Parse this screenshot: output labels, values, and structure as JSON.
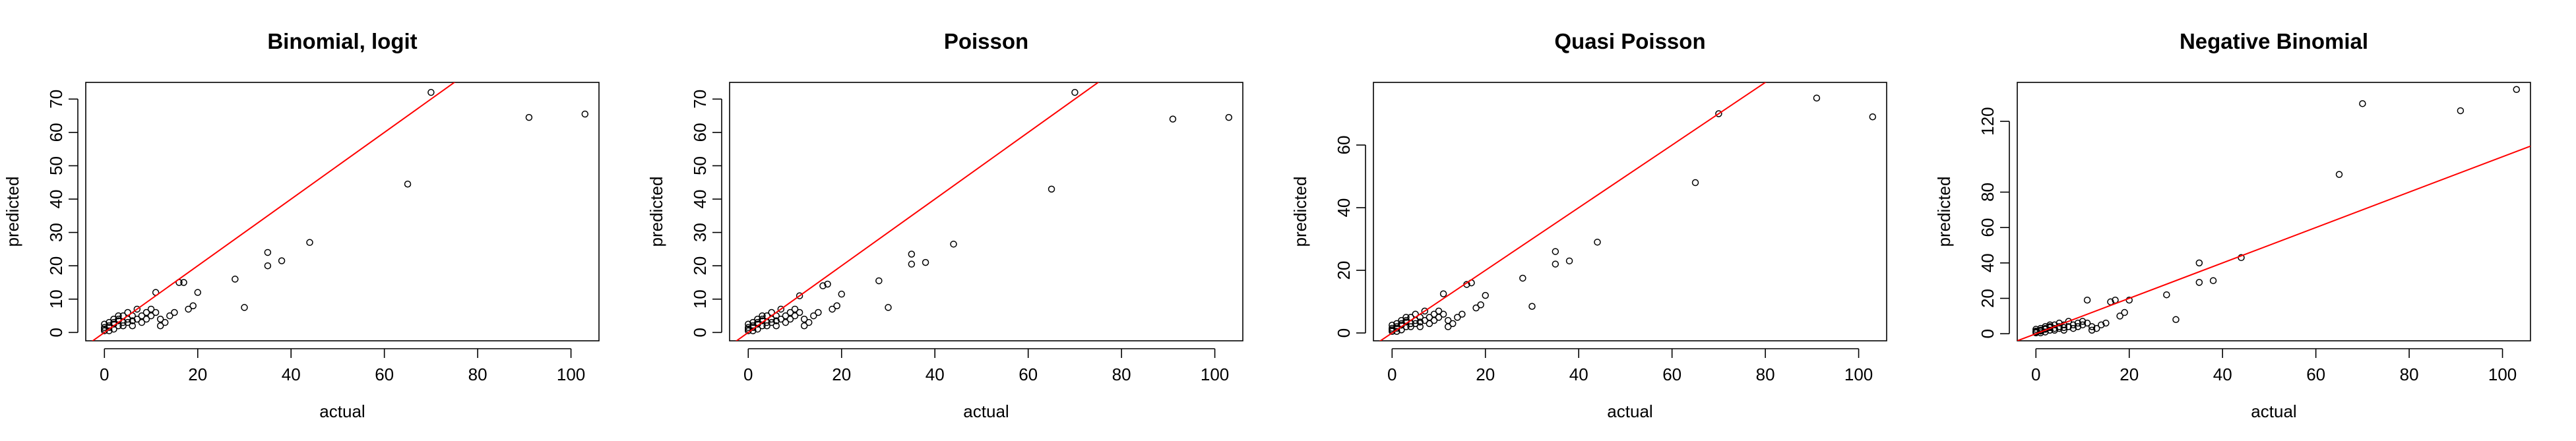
{
  "chart_data": [
    {
      "type": "scatter",
      "title": "Binomial, logit",
      "xlabel": "actual",
      "ylabel": "predicted",
      "xlim": [
        -4,
        106
      ],
      "ylim": [
        -2.5,
        75
      ],
      "xticks": [
        0,
        20,
        40,
        60,
        80,
        100
      ],
      "yticks": [
        0,
        10,
        20,
        30,
        40,
        50,
        60,
        70
      ],
      "reference_line": {
        "color": "#ff0000",
        "intercept": 0,
        "slope": 1
      },
      "points": {
        "x": [
          0,
          0,
          0,
          0,
          1,
          1,
          1,
          1,
          2,
          2,
          2,
          2,
          3,
          3,
          3,
          3,
          4,
          4,
          4,
          5,
          5,
          5,
          6,
          6,
          6,
          7,
          7,
          8,
          8,
          9,
          9,
          10,
          10,
          11,
          11,
          12,
          12,
          13,
          14,
          15,
          16,
          17,
          18,
          19,
          20,
          28,
          30,
          35,
          35,
          38,
          44,
          65,
          70,
          91,
          103
        ],
        "y": [
          0.5,
          1.5,
          2.5,
          1,
          0.5,
          2,
          3,
          1.5,
          1,
          2.5,
          4,
          3,
          2,
          3.5,
          5,
          4,
          3,
          5,
          2,
          4,
          6,
          3,
          3.5,
          5,
          2,
          4,
          7,
          5,
          3,
          6,
          4,
          7,
          5,
          6,
          12,
          2,
          4,
          3,
          5,
          6,
          15,
          15,
          7,
          8,
          12,
          16,
          7.5,
          20,
          24,
          21.5,
          27,
          44.5,
          72,
          64.5,
          65.5
        ]
      }
    },
    {
      "type": "scatter",
      "title": "Poisson",
      "xlabel": "actual",
      "ylabel": "predicted",
      "xlim": [
        -4,
        106
      ],
      "ylim": [
        -2.5,
        75
      ],
      "xticks": [
        0,
        20,
        40,
        60,
        80,
        100
      ],
      "yticks": [
        0,
        10,
        20,
        30,
        40,
        50,
        60,
        70
      ],
      "reference_line": {
        "color": "#ff0000",
        "intercept": 0,
        "slope": 1
      },
      "points": {
        "x": [
          0,
          0,
          0,
          0,
          1,
          1,
          1,
          1,
          2,
          2,
          2,
          2,
          3,
          3,
          3,
          3,
          4,
          4,
          4,
          5,
          5,
          5,
          6,
          6,
          6,
          7,
          7,
          8,
          8,
          9,
          9,
          10,
          10,
          11,
          11,
          12,
          12,
          13,
          14,
          15,
          16,
          17,
          18,
          19,
          20,
          28,
          30,
          35,
          35,
          38,
          44,
          65,
          70,
          91,
          103
        ],
        "y": [
          0.5,
          1.5,
          2.5,
          1,
          0.5,
          2,
          3,
          1.5,
          1,
          2.5,
          4,
          3,
          2,
          3.5,
          5,
          4,
          3,
          5,
          2,
          4,
          6,
          3,
          3.5,
          5,
          2,
          4,
          7,
          5,
          3,
          6,
          4,
          7,
          5,
          6,
          11,
          2,
          4,
          3,
          5,
          6,
          14,
          14.5,
          7,
          8,
          11.5,
          15.5,
          7.5,
          20.5,
          23.5,
          21,
          26.5,
          43,
          72,
          64,
          64.5
        ]
      }
    },
    {
      "type": "scatter",
      "title": "Quasi Poisson",
      "xlabel": "actual",
      "ylabel": "predicted",
      "xlim": [
        -4,
        106
      ],
      "ylim": [
        -2.5,
        80
      ],
      "xticks": [
        0,
        20,
        40,
        60,
        80,
        100
      ],
      "yticks": [
        0,
        20,
        40,
        60
      ],
      "reference_line": {
        "color": "#ff0000",
        "intercept": 0,
        "slope": 1
      },
      "points": {
        "x": [
          0,
          0,
          0,
          0,
          1,
          1,
          1,
          1,
          2,
          2,
          2,
          2,
          3,
          3,
          3,
          3,
          4,
          4,
          4,
          5,
          5,
          5,
          6,
          6,
          6,
          7,
          7,
          8,
          8,
          9,
          9,
          10,
          10,
          11,
          11,
          12,
          12,
          13,
          14,
          15,
          16,
          17,
          18,
          19,
          20,
          28,
          30,
          35,
          35,
          38,
          44,
          65,
          70,
          91,
          103
        ],
        "y": [
          0.5,
          1.5,
          2.5,
          1,
          0.5,
          2,
          3,
          1.5,
          1,
          2.5,
          4,
          3,
          2,
          3.5,
          5,
          4,
          3,
          5,
          2,
          4,
          6,
          3,
          3.5,
          5,
          2,
          4,
          7,
          5,
          3,
          6,
          4,
          7,
          5,
          6,
          12.5,
          2,
          4,
          3,
          5,
          6,
          15.5,
          16,
          8,
          9,
          12,
          17.5,
          8.5,
          22,
          26,
          23,
          29,
          48,
          70,
          75,
          69
        ]
      }
    },
    {
      "type": "scatter",
      "title": "Negative Binomial",
      "xlabel": "actual",
      "ylabel": "predicted",
      "xlim": [
        -4,
        106
      ],
      "ylim": [
        -4,
        142
      ],
      "xticks": [
        0,
        20,
        40,
        60,
        80,
        100
      ],
      "yticks": [
        0,
        20,
        40,
        60,
        80,
        120
      ],
      "reference_line": {
        "color": "#ff0000",
        "intercept": 0,
        "slope": 1
      },
      "points": {
        "x": [
          0,
          0,
          0,
          0,
          1,
          1,
          1,
          1,
          2,
          2,
          2,
          2,
          3,
          3,
          3,
          3,
          4,
          4,
          4,
          5,
          5,
          5,
          6,
          6,
          6,
          7,
          7,
          8,
          8,
          9,
          9,
          10,
          10,
          11,
          11,
          12,
          12,
          13,
          14,
          15,
          16,
          17,
          18,
          19,
          20,
          28,
          30,
          35,
          35,
          38,
          44,
          65,
          70,
          91,
          103
        ],
        "y": [
          0.5,
          1.5,
          2.5,
          1,
          0.5,
          2,
          3,
          1.5,
          1,
          2.5,
          4,
          3,
          2,
          3.5,
          5,
          4,
          3,
          5,
          2,
          4,
          6,
          3,
          3.5,
          5,
          2,
          4,
          7,
          5,
          3,
          6,
          4,
          7,
          5,
          6,
          19,
          2,
          4,
          3,
          5,
          6,
          18,
          19,
          10,
          12,
          19,
          22,
          8,
          29,
          40,
          30,
          43,
          90,
          130,
          126,
          138
        ]
      }
    }
  ]
}
